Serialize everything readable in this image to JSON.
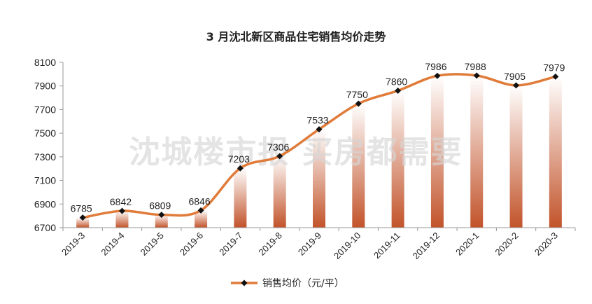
{
  "chart_data": {
    "type": "line",
    "title": "3 月沈北新区商品住宅销售均价走势",
    "categories": [
      "2019-3",
      "2019-4",
      "2019-5",
      "2019-6",
      "2019-7",
      "2019-8",
      "2019-9",
      "2019-10",
      "2019-11",
      "2019-12",
      "2020-1",
      "2020-2",
      "2020-3"
    ],
    "series": [
      {
        "name": "销售均价（元/平）",
        "values": [
          6785,
          6842,
          6809,
          6846,
          7203,
          7306,
          7533,
          7750,
          7860,
          7986,
          7988,
          7905,
          7979
        ]
      }
    ],
    "ylim": [
      6700,
      8100
    ],
    "yticks": [
      6700,
      6900,
      7100,
      7300,
      7500,
      7700,
      7900,
      8100
    ],
    "grid": false,
    "legend_position": "bottom",
    "watermark": "沈城楼市报 买房都需要",
    "colors": {
      "line": "#e07b39",
      "marker": "#111111",
      "bar_top": "#ffffff",
      "bar_bottom": "#c2532a"
    }
  }
}
